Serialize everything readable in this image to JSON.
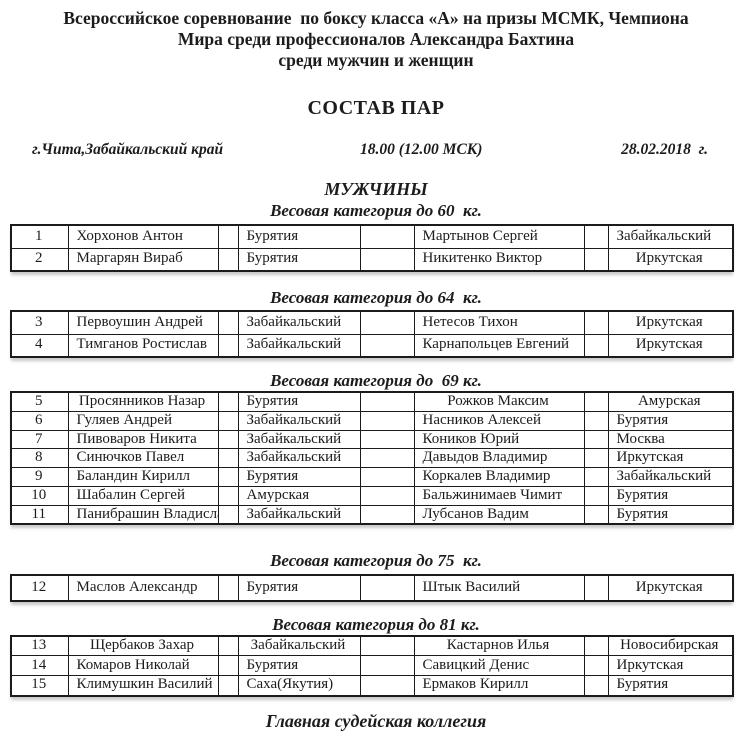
{
  "colors": {
    "text": "#1c1c1c",
    "border": "#1b1b1b",
    "background": "#ffffff"
  },
  "header": {
    "title_lines": [
      "Всероссийское соревнование  по боксу класса «А» на призы МСМК, Чемпиона",
      "Мира среди профессионалов Александра Бахтина",
      "среди мужчин и женщин"
    ],
    "subtitle": "СОСТАВ ПАР",
    "info": {
      "place": "г.Чита,Забайкальский край",
      "time": "18.00 (12.00 МСК)",
      "date": "28.02.2018  г."
    },
    "gender_heading": "МУЖЧИНЫ"
  },
  "sections": [
    {
      "heading": "Весовая категория до 60  кг.",
      "rows": [
        {
          "num": "1",
          "boxer1": "Хорхонов Антон",
          "region1": "Бурятия",
          "boxer2": "Мартынов Сергей",
          "region2": "Забайкальский",
          "centered": []
        },
        {
          "num": "2",
          "boxer1": "Маргарян Вираб",
          "region1": "Бурятия",
          "boxer2": "Никитенко Виктор",
          "region2": "Иркутская",
          "centered": [
            7
          ]
        }
      ]
    },
    {
      "heading": "Весовая категория до 64  кг.",
      "rows": [
        {
          "num": "3",
          "boxer1": "Первоушин Андрей",
          "region1": "Забайкальский",
          "boxer2": "Нетесов Тихон",
          "region2": "Иркутская",
          "centered": [
            7
          ]
        },
        {
          "num": "4",
          "boxer1": "Тимганов Ростислав",
          "region1": "Забайкальский",
          "boxer2": "Карнапольцев Евгений",
          "region2": "Иркутская",
          "centered": [
            7
          ]
        }
      ]
    },
    {
      "heading": "Весовая категория до  69 кг.",
      "rows": [
        {
          "num": "5",
          "boxer1": "Просянников Назар",
          "region1": "Бурятия",
          "boxer2": "Рожков Максим",
          "region2": "Амурская",
          "centered": [
            1,
            5,
            7
          ]
        },
        {
          "num": "6",
          "boxer1": "Гуляев Андрей",
          "region1": "Забайкальский",
          "boxer2": "Насников Алексей",
          "region2": "Бурятия",
          "centered": []
        },
        {
          "num": "7",
          "boxer1": "Пивоваров Никита",
          "region1": "Забайкальский",
          "boxer2": "Коников Юрий",
          "region2": "Москва",
          "centered": []
        },
        {
          "num": "8",
          "boxer1": "Синючков Павел",
          "region1": "Забайкальский",
          "boxer2": "Давыдов Владимир",
          "region2": "Иркутская",
          "centered": []
        },
        {
          "num": "9",
          "boxer1": "Баландин Кирилл",
          "region1": "Бурятия",
          "boxer2": "Коркалев Владимир",
          "region2": "Забайкальский",
          "centered": []
        },
        {
          "num": "10",
          "boxer1": "Шабалин Сергей",
          "region1": "Амурская",
          "boxer2": "Бальжинимаев Чимит",
          "region2": "Бурятия",
          "centered": []
        },
        {
          "num": "11",
          "boxer1": "Панибрашин Владислав",
          "region1": "Забайкальский",
          "boxer2": "Лубсанов Вадим",
          "region2": "Бурятия",
          "centered": []
        }
      ]
    },
    {
      "heading": "Весовая категория до 75  кг.",
      "rows": [
        {
          "num": "12",
          "boxer1": "Маслов Александр",
          "region1": "Бурятия",
          "boxer2": "Штык Василий",
          "region2": "Иркутская",
          "centered": [
            7
          ]
        }
      ]
    },
    {
      "heading": "Весовая категория до 81 кг.",
      "rows": [
        {
          "num": "13",
          "boxer1": "Щербаков Захар",
          "region1": "Забайкальский",
          "boxer2": "Кастарнов Илья",
          "region2": "Новосибирская",
          "centered": [
            1,
            3,
            5,
            7
          ]
        },
        {
          "num": "14",
          "boxer1": "Комаров Николай",
          "region1": "Бурятия",
          "boxer2": "Савицкий Денис",
          "region2": "Иркутская",
          "centered": []
        },
        {
          "num": "15",
          "boxer1": "Климушкин Василий",
          "region1": "Саха(Якутия)",
          "boxer2": "Ермаков Кирилл",
          "region2": "Бурятия",
          "centered": []
        }
      ]
    }
  ],
  "footer": {
    "heading": "Главная судейская коллегия"
  }
}
